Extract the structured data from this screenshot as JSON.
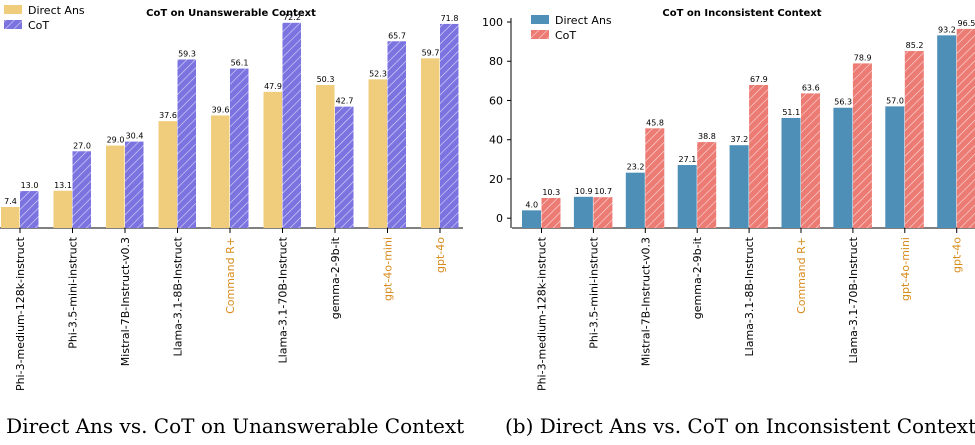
{
  "chart_data": [
    {
      "type": "bar",
      "title": "CoT on Unanswerable Context",
      "caption": ") Direct Ans vs. CoT on Unanswerable Context",
      "categories": [
        "Phi-3-medium-128k-instruct",
        "Phi-3.5-mini-instruct",
        "Mistral-7B-Instruct-v0.3",
        "Llama-3.1-8B-Instruct",
        "Command R+",
        "Llama-3.1-70B-Instruct",
        "gemma-2-9b-it",
        "gpt-4o-mini",
        "gpt-4o"
      ],
      "highlight_categories": [
        "Command R+",
        "gpt-4o-mini",
        "gpt-4o"
      ],
      "series": [
        {
          "name": "Direct Ans",
          "color": "#f0cd7c",
          "values": [
            7.4,
            13.1,
            29.0,
            37.6,
            39.6,
            47.9,
            50.3,
            52.3,
            59.7
          ],
          "labels": [
            "7.4",
            "13.1",
            "29.0",
            "37.6",
            "39.6",
            "47.9",
            "50.3",
            "52.3",
            "59.7"
          ]
        },
        {
          "name": "CoT",
          "color": "#7b73e0",
          "hatch": true,
          "values": [
            13.0,
            27.0,
            30.4,
            59.3,
            56.1,
            72.2,
            42.7,
            65.7,
            71.8
          ],
          "labels": [
            "13.0",
            "27.0",
            "30.4",
            "59.3",
            "56.1",
            "72.2",
            "42.7",
            "65.7",
            "71.8"
          ]
        }
      ],
      "ylim": [
        0,
        76
      ],
      "yticks": [],
      "legend_position": "top-left",
      "xlabel": "",
      "ylabel": ""
    },
    {
      "type": "bar",
      "title": "CoT on Inconsistent Context",
      "caption": "(b) Direct Ans vs. CoT on Inconsistent Context",
      "categories": [
        "Phi-3-medium-128k-instruct",
        "Phi-3.5-mini-instruct",
        "Mistral-7B-Instruct-v0.3",
        "gemma-2-9b-it",
        "Llama-3.1-8B-Instruct",
        "Command R+",
        "Llama-3.1-70B-Instruct",
        "gpt-4o-mini",
        "gpt-4o"
      ],
      "highlight_categories": [
        "Command R+",
        "gpt-4o-mini",
        "gpt-4o"
      ],
      "series": [
        {
          "name": "Direct Ans",
          "color": "#4e8fb7",
          "values": [
            4.0,
            10.9,
            23.2,
            27.1,
            37.2,
            51.1,
            56.3,
            57.0,
            93.2
          ],
          "labels": [
            "4.0",
            "10.9",
            "23.2",
            "27.1",
            "37.2",
            "51.1",
            "56.3",
            "57.0",
            "93.2"
          ]
        },
        {
          "name": "CoT",
          "color": "#ec7b74",
          "hatch": true,
          "values": [
            10.3,
            10.7,
            45.8,
            38.8,
            67.9,
            63.6,
            78.9,
            85.2,
            96.5
          ],
          "labels": [
            "10.3",
            "10.7",
            "45.8",
            "38.8",
            "67.9",
            "63.6",
            "78.9",
            "85.2",
            "96.5"
          ]
        }
      ],
      "ylim": [
        -5,
        100
      ],
      "yticks": [
        0,
        20,
        40,
        60,
        80,
        100
      ],
      "legend_position": "top-left",
      "xlabel": "",
      "ylabel": ""
    }
  ]
}
